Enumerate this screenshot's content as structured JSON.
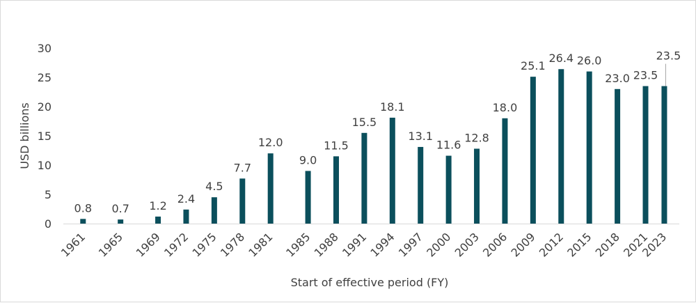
{
  "chart_data": {
    "type": "bar",
    "title": "",
    "xlabel": "Start of effective period (FY)",
    "ylabel": "USD billions",
    "ylim": [
      0,
      30
    ],
    "yticks": [
      0,
      5,
      10,
      15,
      20,
      25,
      30
    ],
    "grid": false,
    "legend": "none",
    "categories": [
      "1961",
      "1965",
      "1969",
      "1972",
      "1975",
      "1978",
      "1981",
      "1985",
      "1988",
      "1991",
      "1994",
      "1997",
      "2000",
      "2003",
      "2006",
      "2009",
      "2012",
      "2015",
      "2018",
      "2021",
      "2023"
    ],
    "values": [
      0.8,
      0.7,
      1.2,
      2.4,
      4.5,
      7.7,
      12.0,
      9.0,
      11.5,
      15.5,
      18.1,
      13.1,
      11.6,
      12.8,
      18.0,
      25.1,
      26.4,
      26.0,
      23.0,
      23.5,
      23.5
    ],
    "value_labels": [
      "0.8",
      "0.7",
      "1.2",
      "2.4",
      "4.5",
      "7.7",
      "12.0",
      "9.0",
      "11.5",
      "15.5",
      "18.1",
      "13.1",
      "11.6",
      "12.8",
      "18.0",
      "25.1",
      "26.4",
      "26.0",
      "23.0",
      "23.5",
      "23.5"
    ],
    "colors": {
      "bar": "#0b4f5c",
      "axis": "#d9d9d9",
      "text": "#404040",
      "leader": "#a6a6a6"
    }
  }
}
